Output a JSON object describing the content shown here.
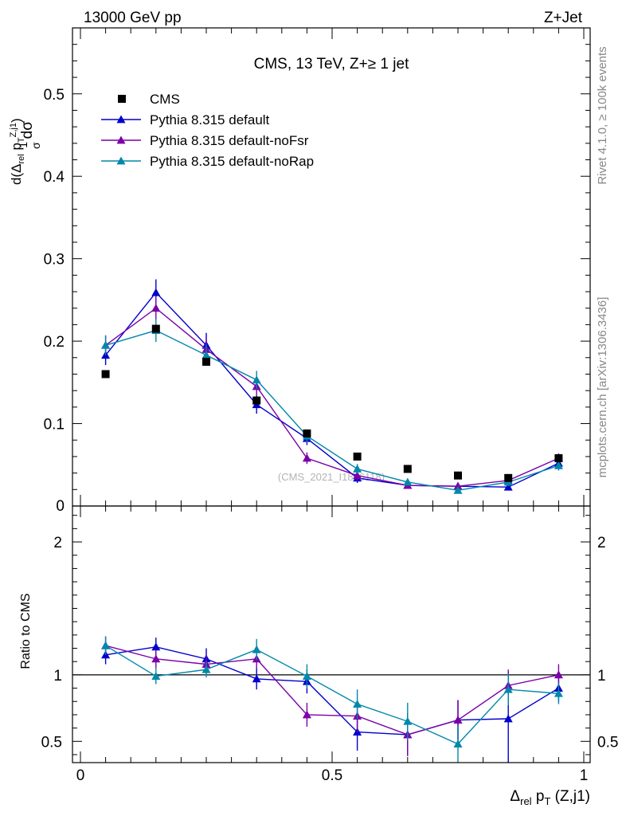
{
  "header": {
    "energy": "13000 GeV pp",
    "process": "Z+Jet"
  },
  "side_labels": {
    "rivet": "Rivet 4.1.0, ≥ 100k events",
    "site": "mcplots.cern.ch [arXiv:1306.3436]"
  },
  "watermark": "(CMS_2021_I1866118)",
  "colors": {
    "cms": "#000000",
    "default": "#0000cc",
    "noFsr": "#7a00a8",
    "noRap": "#0088aa"
  },
  "chart_data": [
    {
      "type": "line",
      "title": "CMS, 13 TeV, Z+≥ 1 jet",
      "ylabel": "1/σ dσ/d(Δrel pT(Z,j1))",
      "xlim": [
        0,
        1
      ],
      "ylim": [
        0,
        0.58
      ],
      "yticks": [
        0.1,
        0.2,
        0.3,
        0.4,
        0.5
      ],
      "ytick_labels": [
        "0.1",
        "0.2",
        "0.3",
        "0.4",
        "0.5"
      ],
      "ytick_zero_label": "0",
      "x": [
        0.05,
        0.15,
        0.25,
        0.35,
        0.45,
        0.55,
        0.65,
        0.75,
        0.85,
        0.95
      ],
      "legend": [
        "CMS",
        "Pythia 8.315 default",
        "Pythia 8.315 default-noFsr",
        "Pythia 8.315 default-noRap"
      ],
      "data": {
        "name": "CMS",
        "values": [
          0.16,
          0.215,
          0.175,
          0.128,
          0.088,
          0.06,
          0.045,
          0.037,
          0.034,
          0.058
        ]
      },
      "series": [
        {
          "name": "Pythia 8.315 default",
          "values": [
            0.183,
            0.259,
            0.195,
            0.123,
            0.082,
            0.034,
            0.025,
            0.024,
            0.023,
            0.052
          ],
          "errors": [
            0.012,
            0.016,
            0.015,
            0.011,
            0.008,
            0.006,
            0.004,
            0.004,
            0.004,
            0.006
          ]
        },
        {
          "name": "Pythia 8.315 default-noFsr",
          "values": [
            0.195,
            0.24,
            0.19,
            0.145,
            0.058,
            0.037,
            0.025,
            0.024,
            0.031,
            0.058
          ],
          "errors": [
            0.012,
            0.014,
            0.014,
            0.011,
            0.007,
            0.006,
            0.004,
            0.004,
            0.005,
            0.006
          ]
        },
        {
          "name": "Pythia 8.315 default-noRap",
          "values": [
            0.195,
            0.213,
            0.183,
            0.153,
            0.085,
            0.045,
            0.029,
            0.019,
            0.029,
            0.049
          ],
          "errors": [
            0.012,
            0.014,
            0.013,
            0.011,
            0.008,
            0.006,
            0.004,
            0.004,
            0.005,
            0.006
          ]
        }
      ]
    },
    {
      "type": "line",
      "ylabel": "Ratio to CMS",
      "xlabel": "Δrel pT (Z,j1)",
      "xlim": [
        0,
        1
      ],
      "ylim": [
        0.34,
        2.27
      ],
      "yticks": [
        0.5,
        1,
        2
      ],
      "ytick_labels": [
        "0.5",
        "1",
        "2"
      ],
      "xticks": [
        0,
        0.5,
        1
      ],
      "xtick_labels": [
        "0",
        "0.5",
        "1"
      ],
      "reference": 1,
      "x": [
        0.05,
        0.15,
        0.25,
        0.35,
        0.45,
        0.55,
        0.65,
        0.75,
        0.85,
        0.95
      ],
      "series": [
        {
          "name": "Pythia 8.315 default",
          "values": [
            1.15,
            1.21,
            1.12,
            0.97,
            0.95,
            0.57,
            0.55,
            0.66,
            0.67,
            0.9
          ],
          "errors": [
            0.07,
            0.07,
            0.08,
            0.08,
            0.09,
            0.14,
            0.16,
            0.15,
            0.35,
            0.1
          ]
        },
        {
          "name": "Pythia 8.315 default-noFsr",
          "values": [
            1.22,
            1.12,
            1.08,
            1.12,
            0.7,
            0.69,
            0.55,
            0.66,
            0.92,
            1.0
          ],
          "errors": [
            0.07,
            0.07,
            0.07,
            0.07,
            0.09,
            0.12,
            0.16,
            0.15,
            0.12,
            0.08
          ]
        },
        {
          "name": "Pythia 8.315 default-noRap",
          "values": [
            1.22,
            0.99,
            1.04,
            1.19,
            0.99,
            0.78,
            0.65,
            0.48,
            0.89,
            0.86
          ],
          "errors": [
            0.07,
            0.06,
            0.06,
            0.08,
            0.09,
            0.11,
            0.14,
            0.14,
            0.12,
            0.08
          ]
        }
      ]
    }
  ]
}
